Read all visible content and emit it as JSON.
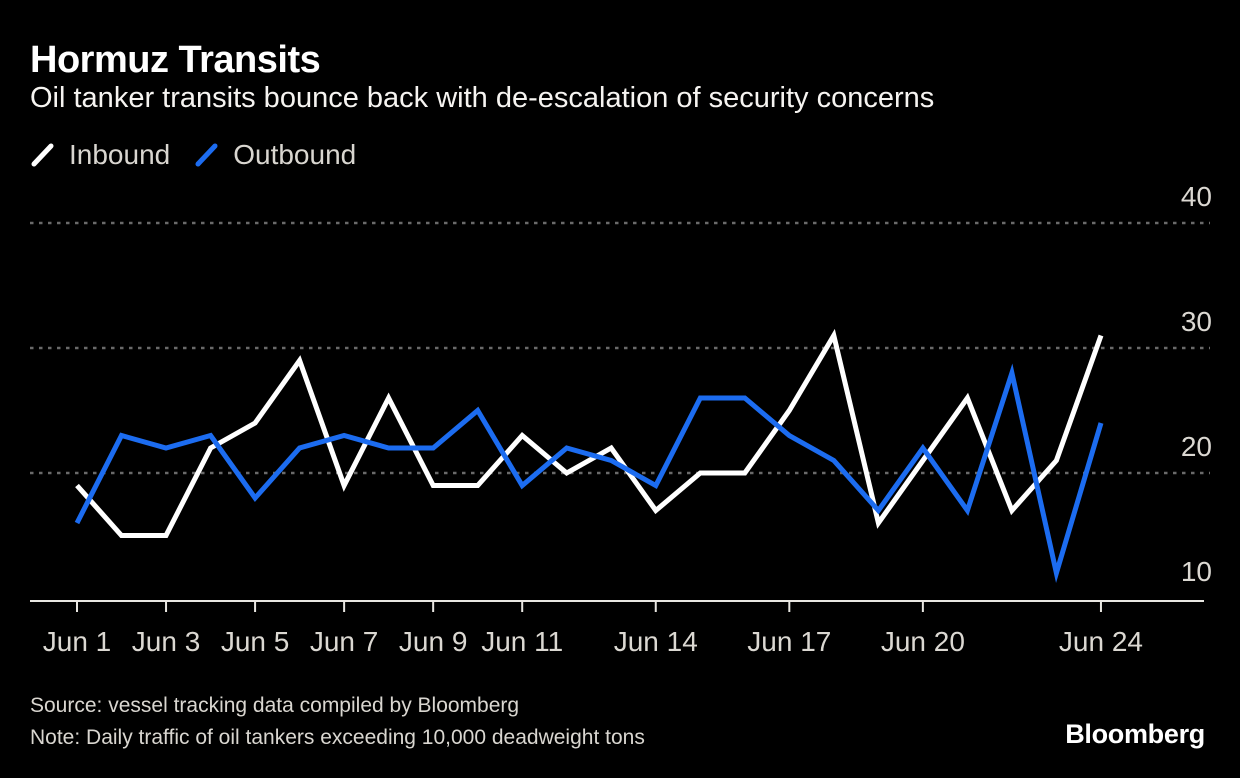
{
  "header": {
    "title": "Hormuz Transits",
    "subtitle": "Oil tanker transits bounce back with de-escalation of security concerns"
  },
  "legend": {
    "items": [
      {
        "label": "Inbound",
        "color": "#ffffff"
      },
      {
        "label": "Outbound",
        "color": "#1c6cf0"
      }
    ]
  },
  "chart_data": {
    "type": "line",
    "title": "Hormuz Transits",
    "subtitle": "Oil tanker transits bounce back with de-escalation of security concerns",
    "categories": [
      "Jun 1",
      "Jun 2",
      "Jun 3",
      "Jun 4",
      "Jun 5",
      "Jun 6",
      "Jun 7",
      "Jun 8",
      "Jun 9",
      "Jun 10",
      "Jun 11",
      "Jun 12",
      "Jun 13",
      "Jun 14",
      "Jun 15",
      "Jun 16",
      "Jun 17",
      "Jun 18",
      "Jun 19",
      "Jun 20",
      "Jun 21",
      "Jun 22",
      "Jun 23",
      "Jun 24"
    ],
    "series": [
      {
        "name": "Inbound",
        "color": "#ffffff",
        "values": [
          19,
          15,
          15,
          22,
          24,
          29,
          19,
          26,
          19,
          19,
          23,
          20,
          22,
          17,
          20,
          20,
          25,
          31,
          16,
          21,
          26,
          17,
          21,
          31
        ]
      },
      {
        "name": "Outbound",
        "color": "#1c6cf0",
        "values": [
          16,
          23,
          22,
          23,
          18,
          22,
          23,
          22,
          22,
          25,
          19,
          22,
          21,
          19,
          26,
          26,
          23,
          21,
          17,
          22,
          17,
          28,
          12,
          24
        ]
      }
    ],
    "ylim": [
      10,
      42
    ],
    "yticks": [
      10,
      20,
      30,
      40
    ],
    "xticks": [
      "Jun 1",
      "Jun 3",
      "Jun 5",
      "Jun 7",
      "Jun 9",
      "Jun 11",
      "Jun 14",
      "Jun 17",
      "Jun 20",
      "Jun 24"
    ],
    "grid": "horizontal-dotted",
    "legend_position": "top-left",
    "colors": {
      "axis": "#e9e7e2",
      "gridline": "#6a6a6a",
      "tick_label": "#dbd8d2"
    }
  },
  "footer": {
    "source": "Source: vessel tracking data compiled by Bloomberg",
    "note": "Note: Daily traffic of oil tankers exceeding 10,000 deadweight tons",
    "brand": "Bloomberg"
  }
}
